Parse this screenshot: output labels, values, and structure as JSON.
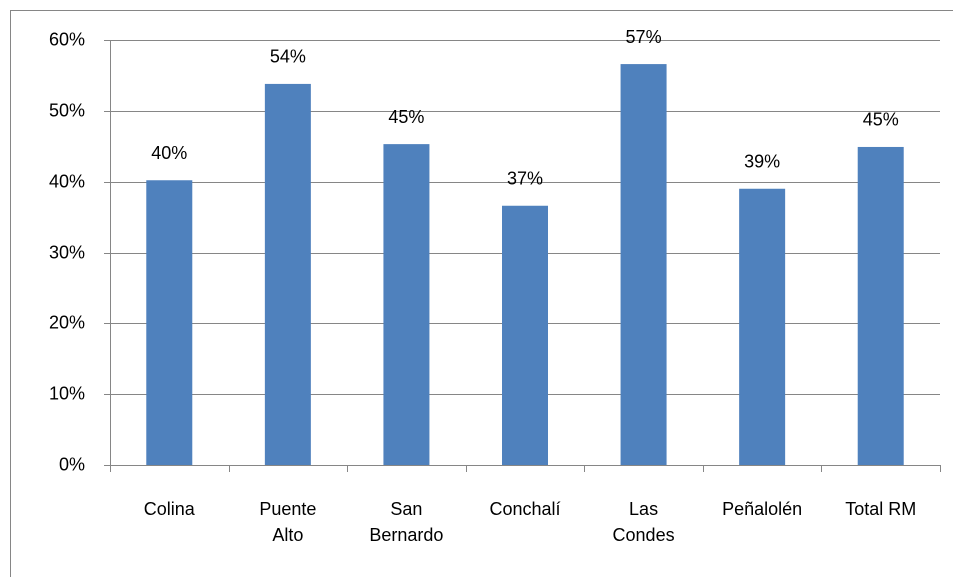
{
  "chart_data": {
    "type": "bar",
    "categories": [
      "Colina",
      "Puente\nAlto",
      "San\nBernardo",
      "Conchalí",
      "Las\nCondes",
      "Peñalolén",
      "Total RM"
    ],
    "values": [
      40.2,
      53.8,
      45.3,
      36.6,
      56.6,
      39.0,
      44.9
    ],
    "value_labels": [
      "40%",
      "54%",
      "45%",
      "37%",
      "57%",
      "39%",
      "45%"
    ],
    "color": "#4f81bd",
    "ylim": [
      0,
      60
    ],
    "yticks": [
      {
        "value": 0,
        "label": "0%"
      },
      {
        "value": 10,
        "label": "10%"
      },
      {
        "value": 20,
        "label": "20%"
      },
      {
        "value": 30,
        "label": "30%"
      },
      {
        "value": 40,
        "label": "40%"
      },
      {
        "value": 50,
        "label": "50%"
      },
      {
        "value": 60,
        "label": "60%"
      }
    ],
    "grid": true
  }
}
